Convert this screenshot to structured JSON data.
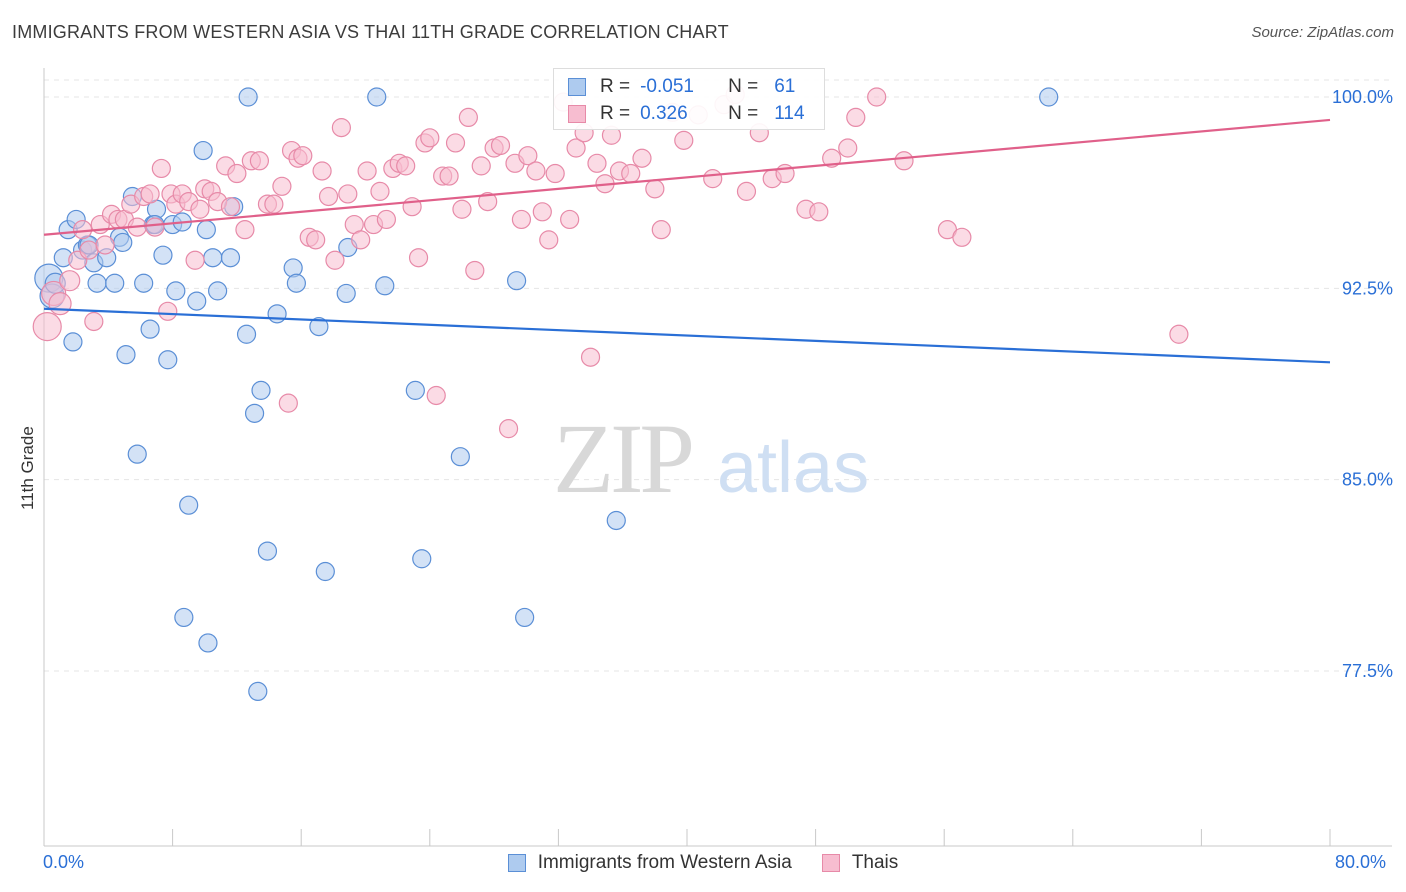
{
  "header": {
    "title": "IMMIGRANTS FROM WESTERN ASIA VS THAI 11TH GRADE CORRELATION CHART",
    "source": "Source: ZipAtlas.com"
  },
  "watermark": {
    "zip": "ZIP",
    "atlas": "atlas"
  },
  "legend_top": {
    "rows": [
      {
        "r_label": "R =",
        "r_value": "-0.051",
        "n_label": "N =",
        "n_value": "61"
      },
      {
        "r_label": "R =",
        "r_value": "0.326",
        "n_label": "N =",
        "n_value": "114"
      }
    ]
  },
  "legend_bottom": {
    "items": [
      "Immigrants from Western Asia",
      "Thais"
    ]
  },
  "colors": {
    "blue_fill": "#aecbef",
    "blue_stroke": "#5b8fd6",
    "blue_line": "#2a6fd6",
    "pink_fill": "#f7bdd0",
    "pink_stroke": "#e78aa8",
    "pink_line": "#e0608a",
    "tick_label": "#2a6fd6",
    "grid": "#e5e5e5"
  },
  "chart_data": {
    "type": "scatter",
    "title": "IMMIGRANTS FROM WESTERN ASIA VS THAI 11TH GRADE CORRELATION CHART",
    "xlabel": "",
    "ylabel": "11th Grade",
    "xlim": [
      0,
      80
    ],
    "ylim": [
      70.0,
      100.8
    ],
    "x_tick_labels": [
      "0.0%",
      "80.0%"
    ],
    "y_ticks": [
      77.5,
      85.0,
      92.5,
      100.0
    ],
    "y_tick_labels": [
      "77.5%",
      "85.0%",
      "92.5%",
      "100.0%"
    ],
    "grid": true,
    "legend_position": "top-center",
    "series": [
      {
        "name": "Immigrants from Western Asia",
        "r": -0.051,
        "n": 61,
        "trend": {
          "x": [
            0,
            80
          ],
          "y": [
            91.7,
            89.6
          ]
        },
        "points": [
          [
            0.3,
            92.9,
            14
          ],
          [
            0.5,
            92.2,
            12
          ],
          [
            0.7,
            92.7,
            10
          ],
          [
            1.2,
            93.7,
            9
          ],
          [
            1.5,
            94.8,
            9
          ],
          [
            1.8,
            90.4,
            9
          ],
          [
            2.0,
            95.2,
            9
          ],
          [
            2.4,
            94.0,
            9
          ],
          [
            2.7,
            94.2,
            9
          ],
          [
            3.1,
            93.5,
            9
          ],
          [
            3.3,
            92.7,
            9
          ],
          [
            3.9,
            93.7,
            9
          ],
          [
            4.4,
            92.7,
            9
          ],
          [
            4.7,
            94.5,
            9
          ],
          [
            4.9,
            94.3,
            9
          ],
          [
            5.1,
            89.9,
            9
          ],
          [
            5.5,
            96.1,
            9
          ],
          [
            5.8,
            86.0,
            9
          ],
          [
            6.2,
            92.7,
            9
          ],
          [
            6.6,
            90.9,
            9
          ],
          [
            6.8,
            95.0,
            9
          ],
          [
            7.0,
            95.6,
            9
          ],
          [
            7.4,
            93.8,
            9
          ],
          [
            7.7,
            89.7,
            9
          ],
          [
            8.0,
            95.0,
            9
          ],
          [
            8.2,
            92.4,
            9
          ],
          [
            8.6,
            95.1,
            9
          ],
          [
            9.0,
            84.0,
            9
          ],
          [
            9.5,
            92.0,
            9
          ],
          [
            9.9,
            97.9,
            9
          ],
          [
            10.1,
            94.8,
            9
          ],
          [
            10.5,
            93.7,
            9
          ],
          [
            10.8,
            92.4,
            9
          ],
          [
            11.6,
            93.7,
            9
          ],
          [
            11.8,
            95.7,
            9
          ],
          [
            12.6,
            90.7,
            9
          ],
          [
            13.1,
            87.6,
            9
          ],
          [
            13.5,
            88.5,
            9
          ],
          [
            13.9,
            82.2,
            9
          ],
          [
            14.5,
            91.5,
            9
          ],
          [
            15.5,
            93.3,
            9
          ],
          [
            15.7,
            92.7,
            9
          ],
          [
            17.1,
            91.0,
            9
          ],
          [
            17.5,
            81.4,
            9
          ],
          [
            18.9,
            94.1,
            9
          ],
          [
            18.8,
            92.3,
            9
          ],
          [
            21.2,
            92.6,
            9
          ],
          [
            23.1,
            88.5,
            9
          ],
          [
            23.5,
            81.9,
            9
          ],
          [
            25.9,
            85.9,
            9
          ],
          [
            29.4,
            92.8,
            9
          ],
          [
            29.9,
            79.6,
            9
          ],
          [
            35.6,
            83.4,
            9
          ],
          [
            8.7,
            79.6,
            9
          ],
          [
            10.2,
            78.6,
            9
          ],
          [
            13.3,
            76.7,
            9
          ],
          [
            12.7,
            100.0,
            9
          ],
          [
            20.7,
            100.0,
            9
          ],
          [
            62.5,
            100.0,
            9
          ],
          [
            6.9,
            95.0,
            9
          ],
          [
            2.8,
            94.2,
            9
          ]
        ]
      },
      {
        "name": "Thais",
        "r": 0.326,
        "n": 114,
        "trend": {
          "x": [
            0,
            80
          ],
          "y": [
            94.6,
            99.1
          ]
        },
        "points": [
          [
            0.2,
            91.0,
            14
          ],
          [
            0.6,
            92.3,
            12
          ],
          [
            1.0,
            91.9,
            11
          ],
          [
            1.6,
            92.8,
            10
          ],
          [
            2.1,
            93.6,
            9
          ],
          [
            2.4,
            94.8,
            9
          ],
          [
            2.8,
            94.0,
            9
          ],
          [
            3.1,
            91.2,
            9
          ],
          [
            3.5,
            95.0,
            9
          ],
          [
            3.8,
            94.2,
            9
          ],
          [
            4.2,
            95.4,
            9
          ],
          [
            4.6,
            95.2,
            9
          ],
          [
            5.0,
            95.2,
            9
          ],
          [
            5.4,
            95.8,
            9
          ],
          [
            5.8,
            94.9,
            9
          ],
          [
            6.2,
            96.1,
            9
          ],
          [
            6.6,
            96.2,
            9
          ],
          [
            6.9,
            94.9,
            9
          ],
          [
            7.3,
            97.2,
            9
          ],
          [
            7.7,
            91.6,
            9
          ],
          [
            7.9,
            96.2,
            9
          ],
          [
            8.2,
            95.8,
            9
          ],
          [
            8.6,
            96.2,
            9
          ],
          [
            9.0,
            95.9,
            9
          ],
          [
            9.4,
            93.6,
            9
          ],
          [
            9.7,
            95.6,
            9
          ],
          [
            10.0,
            96.4,
            9
          ],
          [
            10.4,
            96.3,
            9
          ],
          [
            10.8,
            95.9,
            9
          ],
          [
            11.3,
            97.3,
            9
          ],
          [
            11.6,
            95.7,
            9
          ],
          [
            12.0,
            97.0,
            9
          ],
          [
            12.5,
            94.8,
            9
          ],
          [
            12.9,
            97.5,
            9
          ],
          [
            13.4,
            97.5,
            9
          ],
          [
            13.9,
            95.8,
            9
          ],
          [
            14.3,
            95.8,
            9
          ],
          [
            14.8,
            96.5,
            9
          ],
          [
            15.2,
            88.0,
            9
          ],
          [
            15.4,
            97.9,
            9
          ],
          [
            15.8,
            97.6,
            9
          ],
          [
            16.1,
            97.7,
            9
          ],
          [
            16.5,
            94.5,
            9
          ],
          [
            16.9,
            94.4,
            9
          ],
          [
            17.3,
            97.1,
            9
          ],
          [
            17.7,
            96.1,
            9
          ],
          [
            18.1,
            93.6,
            9
          ],
          [
            18.5,
            98.8,
            9
          ],
          [
            18.9,
            96.2,
            9
          ],
          [
            19.3,
            95.0,
            9
          ],
          [
            19.7,
            94.4,
            9
          ],
          [
            20.1,
            97.1,
            9
          ],
          [
            20.5,
            95.0,
            9
          ],
          [
            20.9,
            96.3,
            9
          ],
          [
            21.3,
            95.2,
            9
          ],
          [
            21.7,
            97.2,
            9
          ],
          [
            22.1,
            97.4,
            9
          ],
          [
            22.5,
            97.3,
            9
          ],
          [
            22.9,
            95.7,
            9
          ],
          [
            23.3,
            93.7,
            9
          ],
          [
            23.7,
            98.2,
            9
          ],
          [
            24.0,
            98.4,
            9
          ],
          [
            24.4,
            88.3,
            9
          ],
          [
            24.8,
            96.9,
            9
          ],
          [
            25.2,
            96.9,
            9
          ],
          [
            25.6,
            98.2,
            9
          ],
          [
            26.0,
            95.6,
            9
          ],
          [
            26.4,
            99.2,
            9
          ],
          [
            26.8,
            93.2,
            9
          ],
          [
            27.2,
            97.3,
            9
          ],
          [
            27.6,
            95.9,
            9
          ],
          [
            28.0,
            98.0,
            9
          ],
          [
            28.4,
            98.1,
            9
          ],
          [
            28.9,
            87.0,
            9
          ],
          [
            29.3,
            97.4,
            9
          ],
          [
            29.7,
            95.2,
            9
          ],
          [
            30.1,
            97.7,
            9
          ],
          [
            30.6,
            97.1,
            9
          ],
          [
            31.0,
            95.5,
            9
          ],
          [
            31.4,
            94.4,
            9
          ],
          [
            31.8,
            97.0,
            9
          ],
          [
            32.3,
            99.8,
            9
          ],
          [
            32.7,
            95.2,
            9
          ],
          [
            33.1,
            98.0,
            9
          ],
          [
            33.6,
            98.6,
            9
          ],
          [
            34.0,
            89.8,
            9
          ],
          [
            34.4,
            97.4,
            9
          ],
          [
            34.9,
            96.6,
            9
          ],
          [
            35.3,
            98.5,
            9
          ],
          [
            35.8,
            97.1,
            9
          ],
          [
            36.5,
            97.0,
            9
          ],
          [
            37.2,
            97.6,
            9
          ],
          [
            38.0,
            96.4,
            9
          ],
          [
            38.4,
            94.8,
            9
          ],
          [
            39.1,
            99.4,
            9
          ],
          [
            39.8,
            98.3,
            9
          ],
          [
            40.7,
            99.3,
            9
          ],
          [
            41.6,
            96.8,
            9
          ],
          [
            42.3,
            99.7,
            9
          ],
          [
            43.0,
            100.1,
            9
          ],
          [
            43.7,
            96.3,
            9
          ],
          [
            44.5,
            98.6,
            9
          ],
          [
            45.3,
            96.8,
            9
          ],
          [
            46.1,
            97.0,
            9
          ],
          [
            47.4,
            95.6,
            9
          ],
          [
            48.2,
            95.5,
            9
          ],
          [
            49.0,
            97.6,
            9
          ],
          [
            50.0,
            98.0,
            9
          ],
          [
            50.5,
            99.2,
            9
          ],
          [
            51.8,
            100.0,
            9
          ],
          [
            53.5,
            97.5,
            9
          ],
          [
            56.2,
            94.8,
            9
          ],
          [
            57.1,
            94.5,
            9
          ],
          [
            70.6,
            90.7,
            9
          ]
        ]
      }
    ]
  }
}
